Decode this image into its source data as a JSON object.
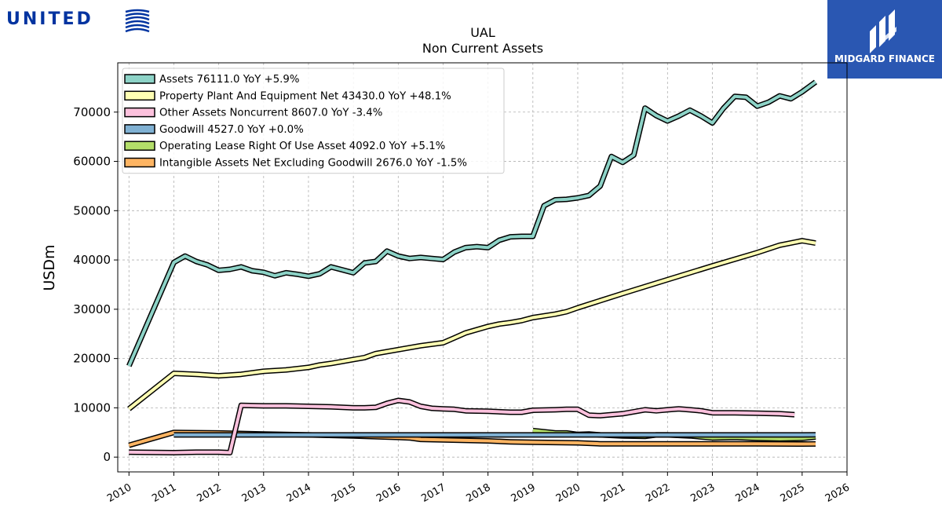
{
  "branding": {
    "united_wordmark": "UNITED",
    "midgard_name": "MIDGARD FINANCE"
  },
  "chart_data": {
    "type": "line",
    "title": "UAL",
    "subtitle": "Non Current  Assets",
    "xlabel": "",
    "ylabel": "USDm",
    "xlim": [
      2009.75,
      2026.0
    ],
    "ylim": [
      -3000,
      80000
    ],
    "x_ticks": [
      "2010",
      "2011",
      "2012",
      "2013",
      "2014",
      "2015",
      "2016",
      "2017",
      "2018",
      "2019",
      "2020",
      "2021",
      "2022",
      "2023",
      "2024",
      "2025",
      "2026"
    ],
    "y_ticks": [
      "0",
      "10000",
      "20000",
      "30000",
      "40000",
      "50000",
      "60000",
      "70000"
    ],
    "grid": true,
    "legend_position": "top-left",
    "series": [
      {
        "name": "Assets  76111.0 YoY +5.9%",
        "color": "#8dd3c7",
        "points": [
          [
            2010.0,
            18500
          ],
          [
            2011.0,
            39500
          ],
          [
            2011.25,
            40800
          ],
          [
            2011.5,
            39700
          ],
          [
            2011.75,
            39000
          ],
          [
            2012.0,
            37900
          ],
          [
            2012.25,
            38100
          ],
          [
            2012.5,
            38600
          ],
          [
            2012.75,
            37800
          ],
          [
            2013.0,
            37500
          ],
          [
            2013.25,
            36800
          ],
          [
            2013.5,
            37400
          ],
          [
            2013.75,
            37100
          ],
          [
            2014.0,
            36700
          ],
          [
            2014.25,
            37200
          ],
          [
            2014.5,
            38600
          ],
          [
            2014.75,
            38000
          ],
          [
            2015.0,
            37400
          ],
          [
            2015.25,
            39400
          ],
          [
            2015.5,
            39700
          ],
          [
            2015.75,
            41800
          ],
          [
            2016.0,
            40800
          ],
          [
            2016.25,
            40300
          ],
          [
            2016.5,
            40500
          ],
          [
            2016.75,
            40300
          ],
          [
            2017.0,
            40100
          ],
          [
            2017.25,
            41600
          ],
          [
            2017.5,
            42500
          ],
          [
            2017.75,
            42700
          ],
          [
            2018.0,
            42500
          ],
          [
            2018.25,
            44000
          ],
          [
            2018.5,
            44700
          ],
          [
            2018.75,
            44800
          ],
          [
            2019.0,
            44800
          ],
          [
            2019.25,
            51000
          ],
          [
            2019.5,
            52200
          ],
          [
            2019.75,
            52300
          ],
          [
            2020.0,
            52600
          ],
          [
            2020.25,
            53100
          ],
          [
            2020.5,
            55000
          ],
          [
            2020.75,
            61000
          ],
          [
            2021.0,
            59800
          ],
          [
            2021.25,
            61300
          ],
          [
            2021.5,
            70800
          ],
          [
            2021.75,
            69300
          ],
          [
            2022.0,
            68200
          ],
          [
            2022.25,
            69200
          ],
          [
            2022.5,
            70400
          ],
          [
            2022.75,
            69200
          ],
          [
            2023.0,
            67800
          ],
          [
            2023.25,
            70800
          ],
          [
            2023.5,
            73200
          ],
          [
            2023.75,
            73000
          ],
          [
            2024.0,
            71200
          ],
          [
            2024.25,
            72000
          ],
          [
            2024.5,
            73300
          ],
          [
            2024.75,
            72700
          ],
          [
            2025.0,
            74100
          ],
          [
            2025.3,
            76111
          ]
        ]
      },
      {
        "name": "Property Plant And Equipment Net  43430.0 YoY +48.1%",
        "color": "#ffffb3",
        "points": [
          [
            2010.0,
            9800
          ],
          [
            2011.0,
            17000
          ],
          [
            2011.5,
            16800
          ],
          [
            2012.0,
            16500
          ],
          [
            2012.5,
            16800
          ],
          [
            2013.0,
            17400
          ],
          [
            2013.5,
            17700
          ],
          [
            2014.0,
            18200
          ],
          [
            2014.25,
            18700
          ],
          [
            2014.5,
            19000
          ],
          [
            2015.0,
            19800
          ],
          [
            2015.25,
            20200
          ],
          [
            2015.5,
            21000
          ],
          [
            2016.0,
            21800
          ],
          [
            2016.5,
            22600
          ],
          [
            2017.0,
            23200
          ],
          [
            2017.25,
            24200
          ],
          [
            2017.5,
            25200
          ],
          [
            2018.0,
            26500
          ],
          [
            2018.25,
            27000
          ],
          [
            2018.5,
            27300
          ],
          [
            2018.75,
            27700
          ],
          [
            2019.0,
            28300
          ],
          [
            2019.5,
            29000
          ],
          [
            2019.75,
            29500
          ],
          [
            2020.0,
            30300
          ],
          [
            2021.0,
            33200
          ],
          [
            2022.0,
            36000
          ],
          [
            2023.0,
            38800
          ],
          [
            2024.0,
            41500
          ],
          [
            2024.5,
            43000
          ],
          [
            2025.0,
            43900
          ],
          [
            2025.3,
            43430
          ]
        ]
      },
      {
        "name": "Other Assets Noncurrent  8607.0 YoY -3.4%",
        "color": "#fcc1dd",
        "points": [
          [
            2010.0,
            1000
          ],
          [
            2011.0,
            900
          ],
          [
            2011.5,
            1000
          ],
          [
            2012.0,
            1000
          ],
          [
            2012.25,
            900
          ],
          [
            2012.5,
            10500
          ],
          [
            2013.0,
            10400
          ],
          [
            2013.5,
            10400
          ],
          [
            2014.0,
            10300
          ],
          [
            2014.5,
            10200
          ],
          [
            2015.0,
            10000
          ],
          [
            2015.25,
            10000
          ],
          [
            2015.5,
            10100
          ],
          [
            2015.75,
            10900
          ],
          [
            2016.0,
            11500
          ],
          [
            2016.25,
            11200
          ],
          [
            2016.5,
            10300
          ],
          [
            2016.75,
            9900
          ],
          [
            2017.0,
            9800
          ],
          [
            2017.25,
            9700
          ],
          [
            2017.5,
            9400
          ],
          [
            2018.0,
            9300
          ],
          [
            2018.5,
            9100
          ],
          [
            2018.75,
            9100
          ],
          [
            2019.0,
            9500
          ],
          [
            2019.5,
            9600
          ],
          [
            2019.75,
            9700
          ],
          [
            2020.0,
            9700
          ],
          [
            2020.25,
            8500
          ],
          [
            2020.5,
            8400
          ],
          [
            2021.0,
            8800
          ],
          [
            2021.5,
            9600
          ],
          [
            2021.75,
            9400
          ],
          [
            2022.0,
            9600
          ],
          [
            2022.25,
            9800
          ],
          [
            2022.5,
            9600
          ],
          [
            2022.75,
            9400
          ],
          [
            2023.0,
            9000
          ],
          [
            2023.5,
            9000
          ],
          [
            2024.0,
            8900
          ],
          [
            2024.5,
            8800
          ],
          [
            2024.83,
            8607
          ]
        ]
      },
      {
        "name": "Goodwill  4527.0 YoY +0.0%",
        "color": "#80b1d3",
        "points": [
          [
            2011.0,
            4500
          ],
          [
            2013.0,
            4500
          ],
          [
            2014.0,
            4500
          ],
          [
            2015.0,
            4500
          ],
          [
            2016.0,
            4500
          ],
          [
            2017.0,
            4500
          ],
          [
            2018.0,
            4500
          ],
          [
            2019.0,
            4500
          ],
          [
            2020.0,
            4500
          ],
          [
            2021.0,
            4500
          ],
          [
            2022.0,
            4500
          ],
          [
            2023.0,
            4500
          ],
          [
            2024.0,
            4500
          ],
          [
            2025.0,
            4500
          ],
          [
            2025.3,
            4527
          ]
        ]
      },
      {
        "name": "Operating Lease Right Of Use Asset  4092.0 YoY +5.1%",
        "color": "#b3de69",
        "points": [
          [
            2019.0,
            5400
          ],
          [
            2019.5,
            4900
          ],
          [
            2019.75,
            4900
          ],
          [
            2020.0,
            4600
          ],
          [
            2020.25,
            4700
          ],
          [
            2020.5,
            4500
          ],
          [
            2021.0,
            4300
          ],
          [
            2021.5,
            4200
          ],
          [
            2021.75,
            4500
          ],
          [
            2022.0,
            4500
          ],
          [
            2022.5,
            4300
          ],
          [
            2023.0,
            3900
          ],
          [
            2023.5,
            4000
          ],
          [
            2024.0,
            3800
          ],
          [
            2024.5,
            3700
          ],
          [
            2025.0,
            3800
          ],
          [
            2025.3,
            4092
          ]
        ]
      },
      {
        "name": "Intangible Assets Net Excluding Goodwill  2676.0 YoY -1.5%",
        "color": "#fdb462",
        "points": [
          [
            2010.0,
            2400
          ],
          [
            2011.0,
            5000
          ],
          [
            2012.0,
            4900
          ],
          [
            2013.0,
            4700
          ],
          [
            2014.0,
            4500
          ],
          [
            2015.0,
            4300
          ],
          [
            2016.0,
            4000
          ],
          [
            2016.25,
            3900
          ],
          [
            2016.5,
            3600
          ],
          [
            2017.0,
            3500
          ],
          [
            2018.0,
            3300
          ],
          [
            2018.5,
            3100
          ],
          [
            2019.0,
            3000
          ],
          [
            2020.0,
            2900
          ],
          [
            2020.5,
            2700
          ],
          [
            2021.0,
            2700
          ],
          [
            2022.0,
            2700
          ],
          [
            2023.0,
            2700
          ],
          [
            2024.0,
            2700
          ],
          [
            2025.0,
            2650
          ],
          [
            2025.3,
            2676
          ]
        ]
      }
    ]
  }
}
